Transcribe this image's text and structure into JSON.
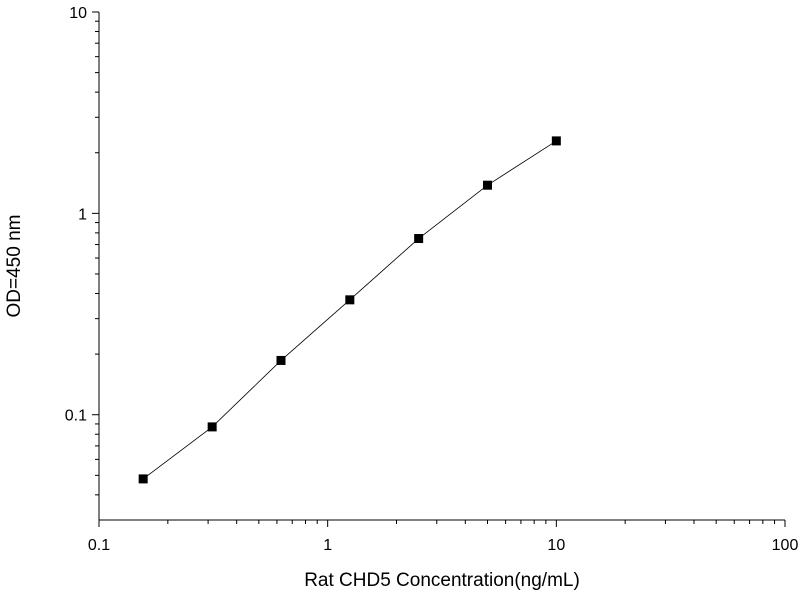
{
  "chart_data": {
    "type": "scatter",
    "xlabel": "Rat CHD5 Concentration(ng/mL)",
    "ylabel": "OD=450 nm",
    "xscale": "log",
    "yscale": "log",
    "xlim": [
      0.1,
      100
    ],
    "ylim": [
      0.03,
      10
    ],
    "xticks": [
      0.1,
      1,
      10,
      100
    ],
    "yticks": [
      0.1,
      1,
      10
    ],
    "xminorticks": [
      0.2,
      0.3,
      0.4,
      0.5,
      0.6,
      0.7,
      0.8,
      0.9,
      2,
      3,
      4,
      5,
      6,
      7,
      8,
      9,
      20,
      30,
      40,
      50,
      60,
      70,
      80,
      90
    ],
    "yminorticks": [
      0.04,
      0.05,
      0.06,
      0.07,
      0.08,
      0.09,
      0.2,
      0.3,
      0.4,
      0.5,
      0.6,
      0.7,
      0.8,
      0.9,
      2,
      3,
      4,
      5,
      6,
      7,
      8,
      9
    ],
    "connect": true,
    "series": [
      {
        "color": "#000000",
        "x": [
          0.156,
          0.3125,
          0.625,
          1.25,
          2.5,
          5,
          10
        ],
        "values": [
          0.048,
          0.087,
          0.186,
          0.372,
          0.75,
          1.38,
          2.29
        ]
      }
    ]
  }
}
